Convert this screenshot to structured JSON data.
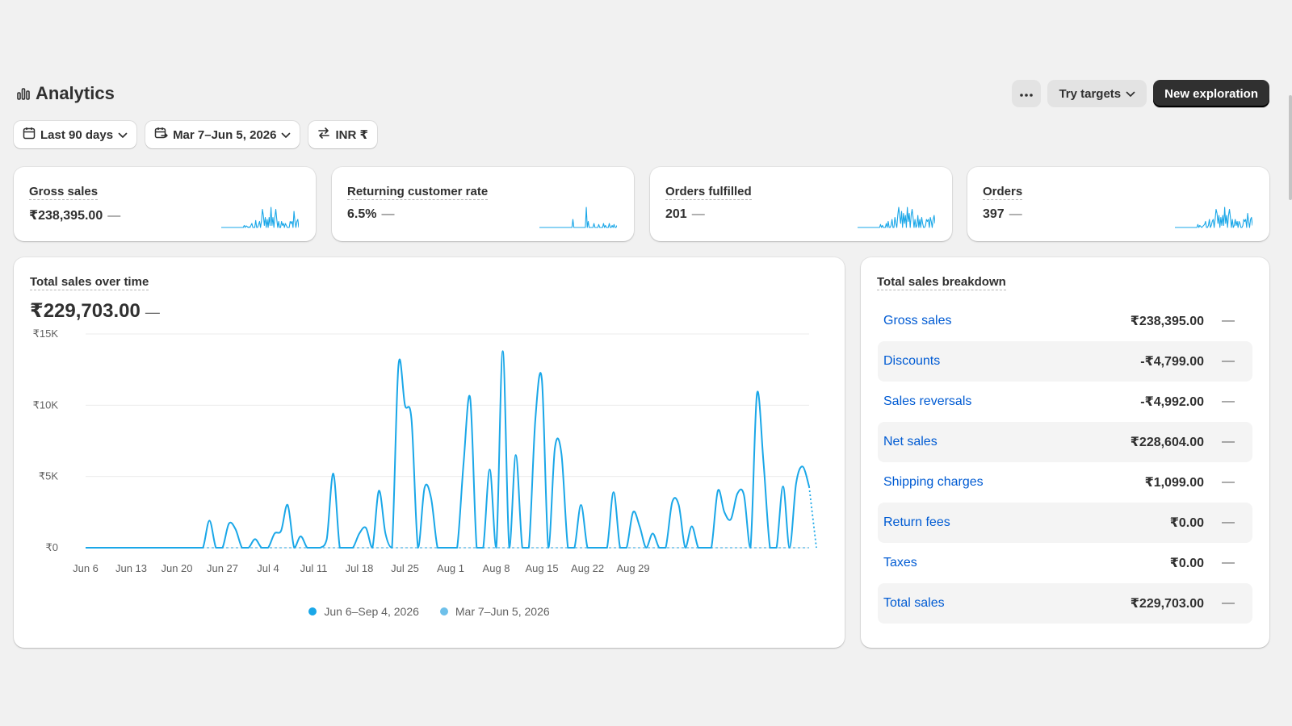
{
  "header": {
    "title": "Analytics",
    "more_icon": "more-horizontal-icon",
    "try_targets_label": "Try targets",
    "new_exploration_label": "New exploration"
  },
  "filters": {
    "period_label": "Last 90 days",
    "compare_label": "Mar 7–Jun 5, 2026",
    "currency_label": "INR ₹"
  },
  "metrics": [
    {
      "title": "Gross sales",
      "value": "₹238,395.00",
      "change": "—",
      "spark": [
        0,
        0,
        0,
        0,
        0,
        0,
        0,
        0,
        0,
        0,
        0,
        0,
        0,
        0,
        0,
        0,
        0,
        0,
        0,
        0,
        0,
        0,
        0,
        0,
        0.1,
        0,
        0.08,
        0.05,
        0,
        0.03,
        0,
        0.1,
        0.2,
        0,
        0,
        0,
        0.35,
        0,
        0,
        0.15,
        0.3,
        0,
        0.3,
        0.9,
        0.6,
        0.1,
        0.5,
        0,
        0.4,
        0,
        0.5,
        0.1,
        1,
        0.1,
        0.5,
        0,
        0.5,
        0.9,
        0.4,
        0,
        0.3,
        0,
        0,
        0.3,
        0.1,
        0.2,
        0,
        0.2,
        0.1,
        0,
        0,
        0,
        0.3,
        0.2,
        0.3,
        0,
        0.8,
        0.3,
        0,
        0.3,
        0.4,
        0
      ]
    },
    {
      "title": "Returning customer rate",
      "value": "6.5%",
      "change": "—",
      "spark": [
        0,
        0,
        0,
        0,
        0,
        0,
        0,
        0,
        0,
        0,
        0,
        0,
        0,
        0,
        0,
        0,
        0,
        0,
        0,
        0,
        0,
        0,
        0,
        0,
        0,
        0,
        0,
        0,
        0,
        0,
        0,
        0,
        0,
        0,
        0,
        0.4,
        0,
        0,
        0,
        0,
        0,
        0,
        0,
        0,
        0,
        0,
        0,
        0,
        0,
        1,
        0,
        0.3,
        0,
        0,
        0,
        0,
        0,
        0.2,
        0,
        0,
        0,
        0,
        0.15,
        0,
        0,
        0,
        0,
        0.2,
        0,
        0.1,
        0,
        0,
        0,
        0.2,
        0,
        0,
        0.1,
        0,
        0.15,
        0,
        0,
        0.1
      ]
    },
    {
      "title": "Orders fulfilled",
      "value": "201",
      "change": "—",
      "spark": [
        0,
        0,
        0,
        0,
        0,
        0,
        0,
        0,
        0,
        0,
        0,
        0,
        0,
        0,
        0,
        0,
        0,
        0,
        0,
        0,
        0,
        0,
        0,
        0,
        0.15,
        0,
        0.1,
        0,
        0,
        0,
        0.2,
        0,
        0.3,
        0,
        0,
        0.1,
        0.4,
        0,
        0,
        0.5,
        0.2,
        0,
        0.6,
        1,
        0.6,
        0.2,
        0.8,
        0,
        0.7,
        0.2,
        0.6,
        0,
        1,
        0.3,
        0.7,
        0,
        0.6,
        0.9,
        0.5,
        0,
        0.4,
        0,
        0.1,
        0.6,
        0,
        0.4,
        0,
        0.5,
        0.2,
        0,
        0,
        0.1,
        0.4,
        0.3,
        0.4,
        0,
        0.5,
        0.3,
        0,
        0.4,
        0.6,
        0.2
      ]
    },
    {
      "title": "Orders",
      "value": "397",
      "change": "—",
      "spark": [
        0,
        0,
        0,
        0,
        0,
        0,
        0,
        0,
        0,
        0,
        0,
        0,
        0,
        0,
        0,
        0,
        0,
        0,
        0,
        0,
        0,
        0,
        0,
        0,
        0.15,
        0,
        0.1,
        0.05,
        0,
        0.05,
        0.1,
        0.15,
        0.3,
        0,
        0,
        0.1,
        0.4,
        0,
        0.1,
        0.3,
        0.4,
        0,
        0.4,
        0.9,
        0.7,
        0.2,
        0.6,
        0,
        0.5,
        0.1,
        0.6,
        0.1,
        1,
        0.2,
        0.6,
        0,
        0.6,
        0.9,
        0.5,
        0,
        0.4,
        0,
        0.1,
        0.4,
        0.1,
        0.3,
        0,
        0.3,
        0.2,
        0,
        0,
        0.1,
        0.4,
        0.3,
        0.4,
        0,
        0.7,
        0.3,
        0,
        0.4,
        0.5,
        0.1
      ]
    }
  ],
  "sales_chart": {
    "title": "Total sales over time",
    "total": "₹229,703.00",
    "change": "—"
  },
  "chart_data": {
    "type": "line",
    "title": "Total sales over time",
    "xlabel": "",
    "ylabel": "",
    "ylim": [
      0,
      15000
    ],
    "y_ticks": [
      "₹0",
      "₹5K",
      "₹10K",
      "₹15K"
    ],
    "y_tick_values": [
      0,
      5000,
      10000,
      15000
    ],
    "x_tick_labels": [
      "Jun 6",
      "Jun 13",
      "Jun 20",
      "Jun 27",
      "Jul 4",
      "Jul 11",
      "Jul 18",
      "Jul 25",
      "Aug 1",
      "Aug 8",
      "Aug 15",
      "Aug 22",
      "Aug 29"
    ],
    "grid": true,
    "legend_position": "bottom-center",
    "series": [
      {
        "name": "Jun 6–Sep 4, 2026",
        "color": "#1aa7e8",
        "values": [
          0,
          0,
          0,
          0,
          0,
          0,
          0,
          0,
          0,
          0,
          0,
          0,
          0,
          0,
          0,
          0,
          0,
          0,
          0,
          1900,
          0,
          0,
          1700,
          1300,
          0,
          0,
          600,
          0,
          0,
          1000,
          1200,
          3000,
          0,
          800,
          0,
          0,
          0,
          600,
          5200,
          0,
          0,
          0,
          1000,
          1400,
          0,
          4000,
          1000,
          0,
          12800,
          10000,
          9000,
          0,
          4200,
          3500,
          0,
          0,
          0,
          0,
          6000,
          10500,
          0,
          0,
          5500,
          0,
          13800,
          0,
          6500,
          0,
          0,
          9000,
          11800,
          0,
          7000,
          6600,
          0,
          0,
          3000,
          0,
          0,
          0,
          0,
          3900,
          0,
          0,
          2500,
          1500,
          0,
          1000,
          0,
          0,
          3200,
          3000,
          0,
          1500,
          0,
          0,
          0,
          4000,
          2500,
          2000,
          3800,
          3700,
          0,
          10800,
          6000,
          0,
          0,
          4300,
          0,
          4500,
          5700,
          4300
        ]
      },
      {
        "name": "Mar 7–Jun 5, 2026",
        "color": "#6ec0ea",
        "values": [
          0
        ]
      }
    ]
  },
  "breakdown": {
    "title": "Total sales breakdown",
    "rows": [
      {
        "label": "Gross sales",
        "value": "₹238,395.00",
        "change": "—"
      },
      {
        "label": "Discounts",
        "value": "-₹4,799.00",
        "change": "—"
      },
      {
        "label": "Sales reversals",
        "value": "-₹4,992.00",
        "change": "—"
      },
      {
        "label": "Net sales",
        "value": "₹228,604.00",
        "change": "—"
      },
      {
        "label": "Shipping charges",
        "value": "₹1,099.00",
        "change": "—"
      },
      {
        "label": "Return fees",
        "value": "₹0.00",
        "change": "—"
      },
      {
        "label": "Taxes",
        "value": "₹0.00",
        "change": "—"
      },
      {
        "label": "Total sales",
        "value": "₹229,703.00",
        "change": "—"
      }
    ]
  },
  "colors": {
    "accent_blue": "#1aa7e8",
    "comparison_blue": "#6ec0ea",
    "link_blue": "#005bd3",
    "dark_button": "#303030"
  }
}
